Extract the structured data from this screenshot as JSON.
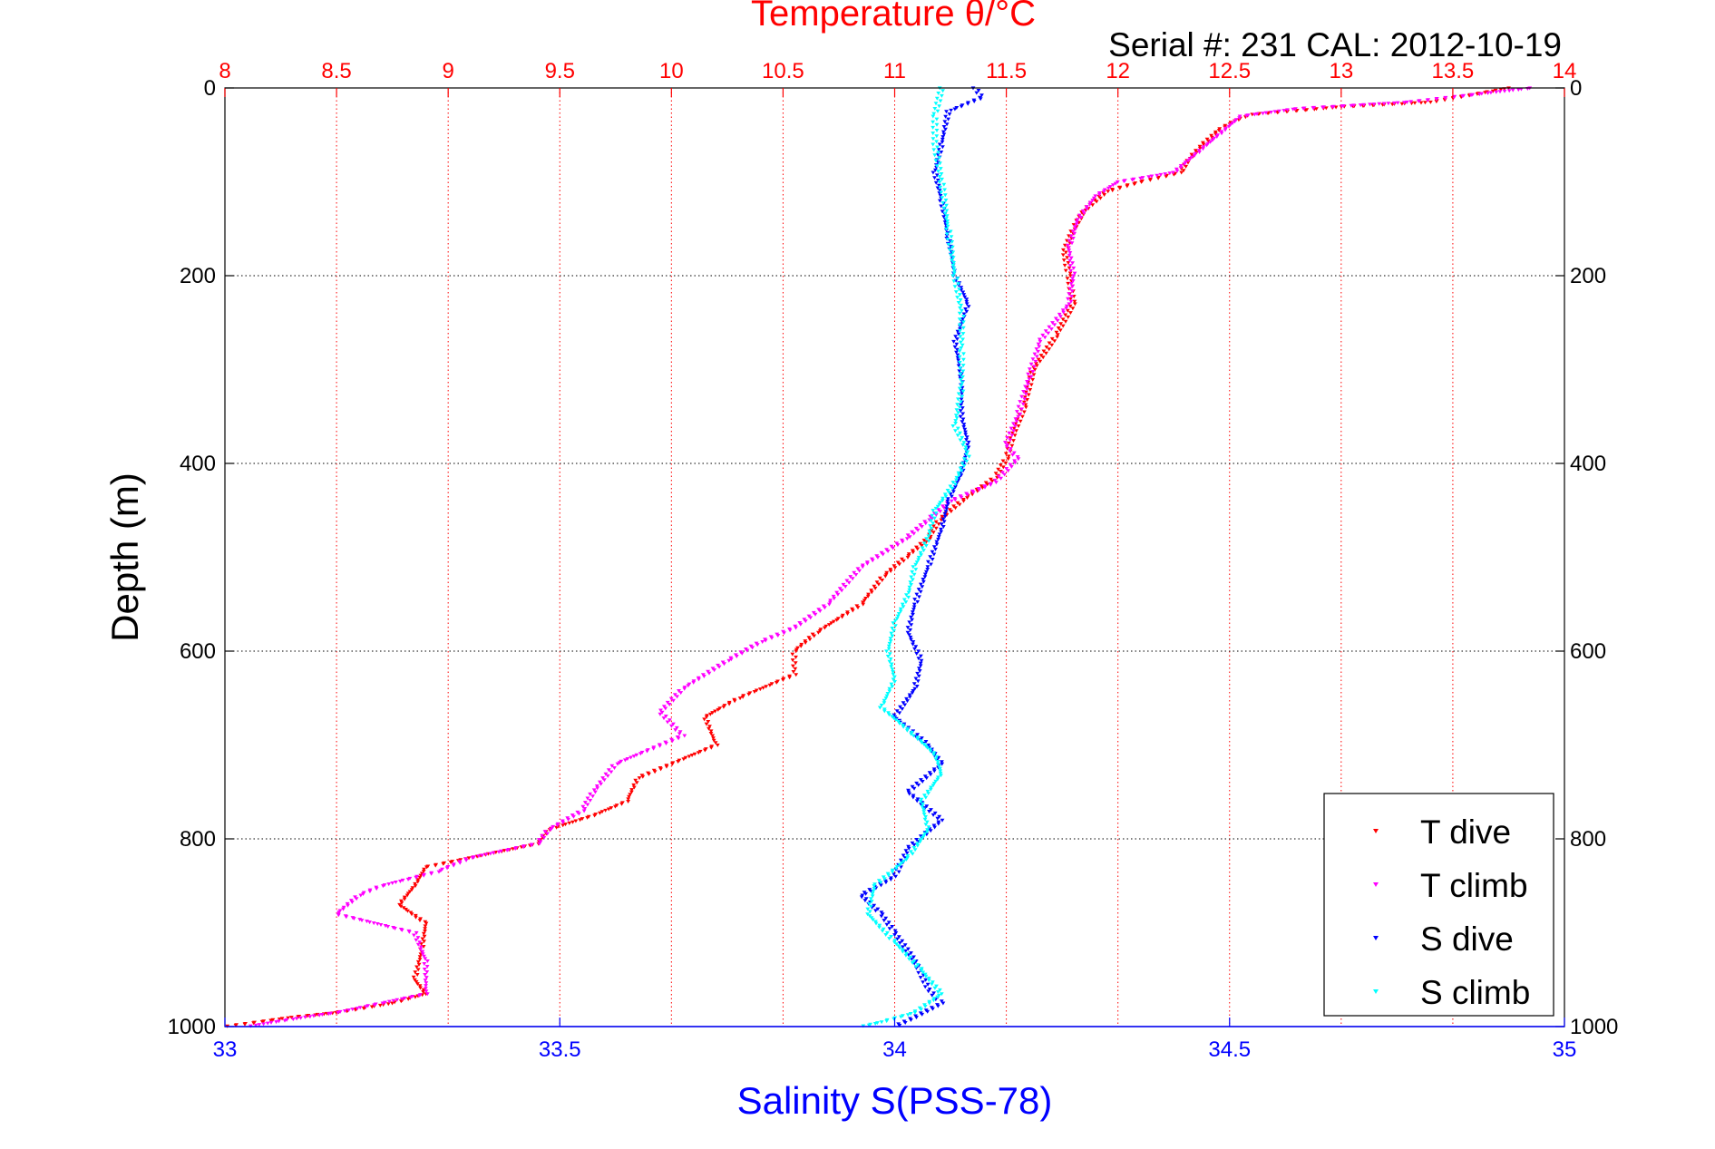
{
  "chart_data": {
    "type": "scatter",
    "top_title": "Temperature θ/°C",
    "subtitle": "Serial #: 231  CAL: 2012-10-19",
    "ylabel": "Depth (m)",
    "xlabel": "Salinity S(PSS-78)",
    "ylim": [
      1000,
      0
    ],
    "y_ticks": [
      "0",
      "200",
      "400",
      "600",
      "800",
      "1000"
    ],
    "x_bottom": {
      "lim": [
        33,
        35
      ],
      "ticks": [
        "33",
        "33.5",
        "34",
        "34.5",
        "35"
      ],
      "color": "#0000ff"
    },
    "x_top": {
      "lim": [
        8,
        14
      ],
      "ticks": [
        "8",
        "8.5",
        "9",
        "9.5",
        "10",
        "10.5",
        "11",
        "11.5",
        "12",
        "12.5",
        "13",
        "13.5",
        "14"
      ],
      "color": "#ff0000"
    },
    "grid": true,
    "legend_position": "bottom-right",
    "series": [
      {
        "name": "T dive",
        "axis": "top",
        "color": "#ff0000",
        "points": [
          [
            13.75,
            0
          ],
          [
            13.4,
            15
          ],
          [
            13.0,
            20
          ],
          [
            12.6,
            28
          ],
          [
            12.52,
            35
          ],
          [
            12.45,
            45
          ],
          [
            12.38,
            60
          ],
          [
            12.32,
            75
          ],
          [
            12.28,
            90
          ],
          [
            12.1,
            100
          ],
          [
            11.95,
            110
          ],
          [
            11.85,
            130
          ],
          [
            11.8,
            150
          ],
          [
            11.76,
            175
          ],
          [
            11.78,
            200
          ],
          [
            11.8,
            230
          ],
          [
            11.72,
            265
          ],
          [
            11.62,
            300
          ],
          [
            11.58,
            340
          ],
          [
            11.53,
            370
          ],
          [
            11.5,
            395
          ],
          [
            11.45,
            415
          ],
          [
            11.3,
            440
          ],
          [
            11.2,
            460
          ],
          [
            11.15,
            480
          ],
          [
            11.05,
            500
          ],
          [
            10.95,
            520
          ],
          [
            10.85,
            550
          ],
          [
            10.65,
            580
          ],
          [
            10.55,
            600
          ],
          [
            10.55,
            625
          ],
          [
            10.3,
            650
          ],
          [
            10.15,
            670
          ],
          [
            10.2,
            700
          ],
          [
            9.85,
            735
          ],
          [
            9.8,
            760
          ],
          [
            9.65,
            775
          ],
          [
            9.45,
            790
          ],
          [
            9.4,
            805
          ],
          [
            9.2,
            815
          ],
          [
            8.9,
            830
          ],
          [
            8.85,
            850
          ],
          [
            8.78,
            870
          ],
          [
            8.9,
            890
          ],
          [
            8.88,
            920
          ],
          [
            8.85,
            950
          ],
          [
            8.9,
            965
          ],
          [
            8.75,
            975
          ],
          [
            8.5,
            985
          ],
          [
            8.3,
            990
          ],
          [
            8.0,
            1000
          ]
        ]
      },
      {
        "name": "T climb",
        "axis": "top",
        "color": "#ff00ff",
        "points": [
          [
            13.85,
            0
          ],
          [
            13.3,
            15
          ],
          [
            12.8,
            22
          ],
          [
            12.55,
            30
          ],
          [
            12.45,
            50
          ],
          [
            12.35,
            70
          ],
          [
            12.25,
            90
          ],
          [
            12.0,
            100
          ],
          [
            11.9,
            115
          ],
          [
            11.82,
            140
          ],
          [
            11.78,
            170
          ],
          [
            11.8,
            200
          ],
          [
            11.78,
            230
          ],
          [
            11.65,
            270
          ],
          [
            11.6,
            310
          ],
          [
            11.55,
            350
          ],
          [
            11.5,
            380
          ],
          [
            11.55,
            395
          ],
          [
            11.45,
            420
          ],
          [
            11.25,
            440
          ],
          [
            11.15,
            460
          ],
          [
            11.05,
            480
          ],
          [
            10.85,
            510
          ],
          [
            10.7,
            550
          ],
          [
            10.55,
            575
          ],
          [
            10.4,
            590
          ],
          [
            10.25,
            610
          ],
          [
            10.05,
            640
          ],
          [
            9.95,
            665
          ],
          [
            10.05,
            690
          ],
          [
            9.75,
            720
          ],
          [
            9.65,
            750
          ],
          [
            9.6,
            770
          ],
          [
            9.45,
            790
          ],
          [
            9.4,
            805
          ],
          [
            9.1,
            820
          ],
          [
            8.95,
            835
          ],
          [
            8.7,
            850
          ],
          [
            8.6,
            860
          ],
          [
            8.5,
            880
          ],
          [
            8.85,
            900
          ],
          [
            8.9,
            930
          ],
          [
            8.9,
            965
          ],
          [
            8.7,
            975
          ],
          [
            8.5,
            985
          ],
          [
            8.3,
            992
          ],
          [
            8.1,
            1000
          ]
        ]
      },
      {
        "name": "S dive",
        "axis": "bottom",
        "color": "#0000ff",
        "points": [
          [
            34.12,
            0
          ],
          [
            34.13,
            10
          ],
          [
            34.08,
            25
          ],
          [
            34.07,
            60
          ],
          [
            34.06,
            90
          ],
          [
            34.07,
            120
          ],
          [
            34.08,
            160
          ],
          [
            34.09,
            200
          ],
          [
            34.11,
            230
          ],
          [
            34.09,
            270
          ],
          [
            34.1,
            310
          ],
          [
            34.1,
            350
          ],
          [
            34.11,
            380
          ],
          [
            34.1,
            410
          ],
          [
            34.08,
            440
          ],
          [
            34.07,
            470
          ],
          [
            34.05,
            510
          ],
          [
            34.03,
            550
          ],
          [
            34.02,
            580
          ],
          [
            34.04,
            610
          ],
          [
            34.03,
            640
          ],
          [
            34.0,
            670
          ],
          [
            34.05,
            700
          ],
          [
            34.07,
            720
          ],
          [
            34.02,
            750
          ],
          [
            34.07,
            780
          ],
          [
            34.02,
            810
          ],
          [
            34.0,
            840
          ],
          [
            33.95,
            860
          ],
          [
            33.98,
            880
          ],
          [
            34.0,
            900
          ],
          [
            34.03,
            930
          ],
          [
            34.05,
            960
          ],
          [
            34.07,
            975
          ],
          [
            34.03,
            990
          ],
          [
            34.0,
            1000
          ]
        ]
      },
      {
        "name": "S climb",
        "axis": "bottom",
        "color": "#00ffff",
        "points": [
          [
            34.07,
            0
          ],
          [
            34.06,
            30
          ],
          [
            34.06,
            60
          ],
          [
            34.07,
            100
          ],
          [
            34.08,
            150
          ],
          [
            34.09,
            200
          ],
          [
            34.1,
            240
          ],
          [
            34.1,
            280
          ],
          [
            34.1,
            320
          ],
          [
            34.09,
            360
          ],
          [
            34.11,
            390
          ],
          [
            34.09,
            420
          ],
          [
            34.06,
            450
          ],
          [
            34.05,
            480
          ],
          [
            34.03,
            510
          ],
          [
            34.02,
            540
          ],
          [
            34.0,
            570
          ],
          [
            33.99,
            600
          ],
          [
            34.0,
            630
          ],
          [
            33.98,
            660
          ],
          [
            34.03,
            690
          ],
          [
            34.06,
            710
          ],
          [
            34.07,
            730
          ],
          [
            34.04,
            760
          ],
          [
            34.05,
            790
          ],
          [
            34.02,
            820
          ],
          [
            33.97,
            850
          ],
          [
            33.96,
            880
          ],
          [
            34.0,
            910
          ],
          [
            34.04,
            940
          ],
          [
            34.07,
            965
          ],
          [
            34.03,
            985
          ],
          [
            33.98,
            995
          ],
          [
            33.95,
            1000
          ]
        ]
      }
    ]
  }
}
